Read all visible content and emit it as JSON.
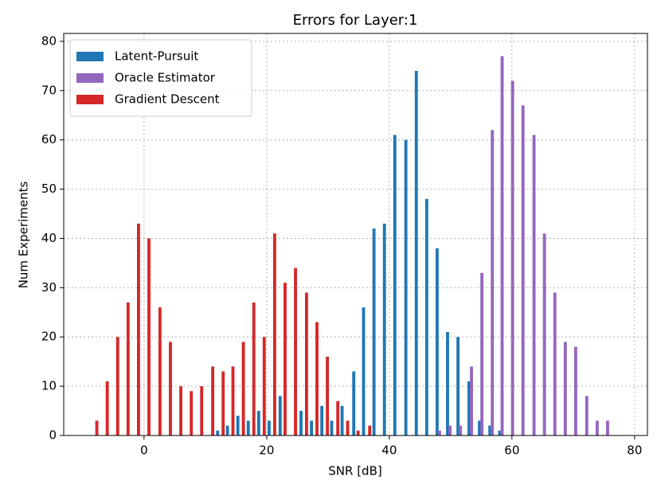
{
  "chart_data": {
    "type": "bar",
    "title": "Errors for Layer:1",
    "xlabel": "SNR [dB]",
    "ylabel": "Num Experiments",
    "xlim": [
      -13.1,
      82.1
    ],
    "ylim": [
      0,
      81.6
    ],
    "xticks": [
      0,
      20,
      40,
      60,
      80
    ],
    "yticks": [
      0,
      10,
      20,
      30,
      40,
      50,
      60,
      70,
      80
    ],
    "grid": true,
    "legend": "upper left",
    "series": [
      {
        "name": "Latent-Pursuit",
        "color": "#1f77b4",
        "x": [
          12.0,
          13.6,
          15.3,
          17.0,
          18.7,
          20.4,
          22.2,
          25.6,
          27.3,
          29.0,
          30.6,
          32.3,
          34.2,
          35.8,
          37.5,
          39.2,
          40.9,
          42.7,
          44.4,
          46.1,
          47.8,
          49.5,
          51.2,
          53.0,
          54.7,
          56.4,
          58.0
        ],
        "values": [
          1,
          2,
          4,
          3,
          5,
          3,
          8,
          5,
          3,
          6,
          3,
          6,
          13,
          26,
          42,
          43,
          61,
          60,
          74,
          48,
          38,
          21,
          20,
          11,
          3,
          2,
          1
        ]
      },
      {
        "name": "Oracle Estimator",
        "color": "#9467bd",
        "x": [
          48.2,
          49.9,
          51.6,
          53.4,
          55.1,
          56.8,
          58.4,
          60.1,
          61.8,
          63.6,
          65.3,
          67.0,
          68.7,
          70.4,
          72.2,
          73.9,
          75.6
        ],
        "values": [
          1,
          2,
          2,
          14,
          33,
          62,
          77,
          72,
          67,
          61,
          41,
          29,
          19,
          18,
          8,
          3,
          3
        ]
      },
      {
        "name": "Gradient Descent",
        "color": "#d62728",
        "x": [
          -7.7,
          -6.0,
          -4.3,
          -2.6,
          -0.9,
          0.8,
          2.6,
          4.3,
          6.0,
          7.7,
          9.4,
          11.2,
          12.9,
          14.5,
          16.2,
          17.9,
          19.6,
          21.3,
          23.0,
          24.7,
          26.5,
          28.2,
          29.9,
          31.6,
          33.2,
          34.9,
          36.8
        ],
        "values": [
          3,
          11,
          20,
          27,
          43,
          40,
          26,
          19,
          10,
          9,
          10,
          14,
          13,
          14,
          19,
          27,
          20,
          41,
          31,
          34,
          29,
          23,
          16,
          7,
          3,
          1,
          2
        ]
      }
    ]
  }
}
